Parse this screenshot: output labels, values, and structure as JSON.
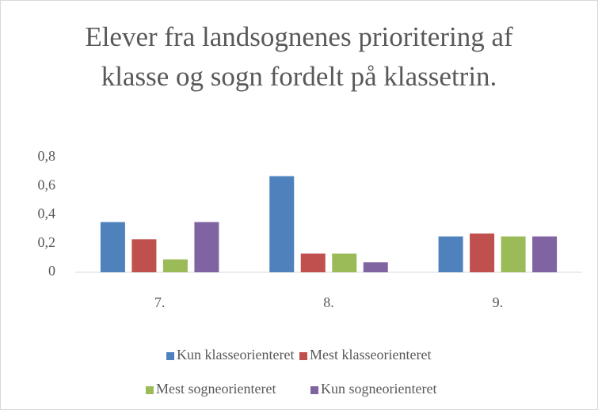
{
  "chart_data": {
    "type": "bar",
    "title": "Elever fra landsognenes prioritering af klasse og sogn fordelt på klassetrin.",
    "categories": [
      "7.",
      "8.",
      "9."
    ],
    "series": [
      {
        "name": "Kun klasseorienteret",
        "color": "#4f81bd",
        "values": [
          0.35,
          0.67,
          0.25
        ]
      },
      {
        "name": "Mest klasseorienteret",
        "color": "#c0504d",
        "values": [
          0.23,
          0.13,
          0.27
        ]
      },
      {
        "name": "Mest sogneorienteret",
        "color": "#9bbb59",
        "values": [
          0.09,
          0.13,
          0.25
        ]
      },
      {
        "name": "Kun sogneorienteret",
        "color": "#8064a2",
        "values": [
          0.35,
          0.07,
          0.25
        ]
      }
    ],
    "ylim": [
      0,
      0.8
    ],
    "yticks": [
      0,
      {
        "value": 0.2,
        "label": "0,2"
      },
      {
        "value": 0.4,
        "label": "0,4"
      },
      {
        "value": 0.6,
        "label": "0,6"
      },
      {
        "value": 0.8,
        "label": "0,8"
      }
    ],
    "grid": false,
    "legend": "bottom"
  }
}
